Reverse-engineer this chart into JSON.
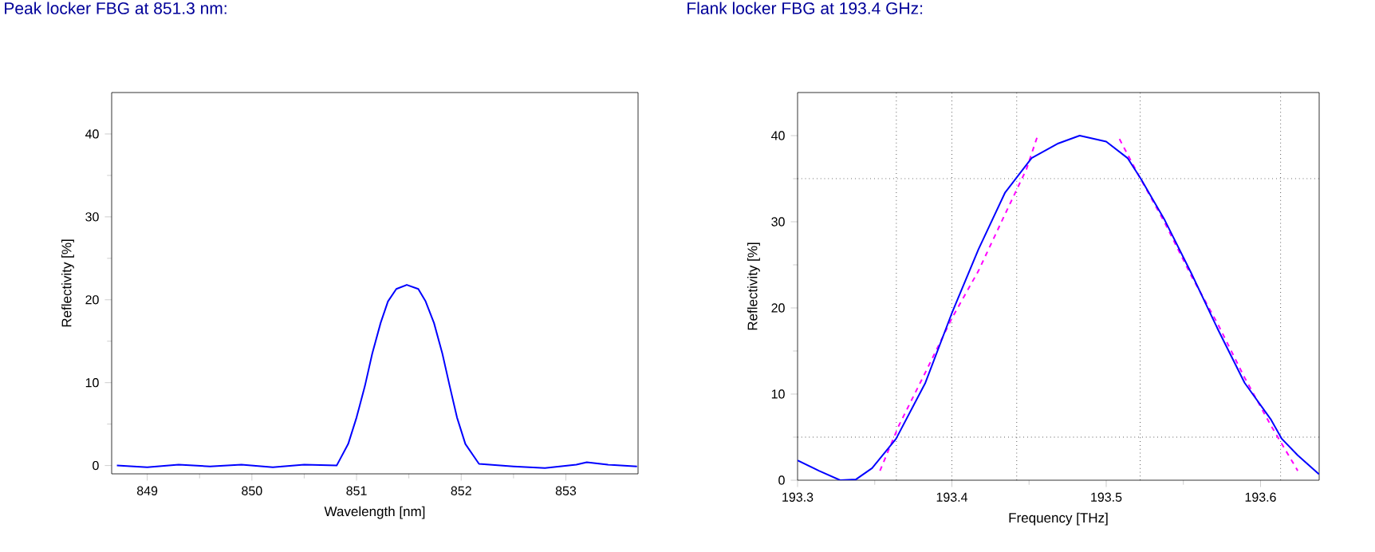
{
  "chart_data": [
    {
      "type": "line",
      "title": "Peak locker FBG at 851.3 nm:",
      "xlabel": "Wavelength [nm]",
      "ylabel": "Reflectivity [%]",
      "xlim": [
        848.66,
        853.69
      ],
      "ylim": [
        -1,
        45
      ],
      "xticks": [
        849,
        850,
        851,
        852,
        853
      ],
      "yticks": [
        0,
        10,
        20,
        30,
        40
      ],
      "series": [
        {
          "color": "#0000ff",
          "line_style": "solid",
          "x": [
            848.71,
            849.0,
            849.3,
            849.6,
            849.9,
            850.2,
            850.5,
            850.81,
            850.92,
            851.0,
            851.08,
            851.15,
            851.23,
            851.3,
            851.38,
            851.48,
            851.59,
            851.66,
            851.74,
            851.82,
            851.89,
            851.96,
            852.04,
            852.17,
            852.5,
            852.8,
            853.1,
            853.2,
            853.4,
            853.68
          ],
          "values": [
            0,
            -0.2,
            0.1,
            -0.1,
            0.1,
            -0.2,
            0.1,
            0,
            2.6,
            5.8,
            9.6,
            13.5,
            17.2,
            19.8,
            21.3,
            21.8,
            21.3,
            19.8,
            17.2,
            13.5,
            9.6,
            5.8,
            2.6,
            0.2,
            -0.1,
            -0.3,
            0.1,
            0.4,
            0.1,
            -0.1
          ]
        }
      ]
    },
    {
      "type": "line",
      "title": "Flank locker FBG at 193.4 GHz:",
      "xlabel": "Frequency [THz]",
      "ylabel": "Reflectivity [%]",
      "xlim": [
        193.3,
        193.638
      ],
      "ylim": [
        0,
        45
      ],
      "xticks": [
        193.3,
        193.4,
        193.5,
        193.6
      ],
      "yticks": [
        0,
        10,
        20,
        30,
        40
      ],
      "ref_lines": [
        {
          "axis": "y",
          "value": 5,
          "line_style": "dotted"
        },
        {
          "axis": "y",
          "value": 35,
          "line_style": "dotted"
        },
        {
          "axis": "x",
          "value": 193.364,
          "line_style": "dotted"
        },
        {
          "axis": "x",
          "value": 193.4,
          "line_style": "dotted"
        },
        {
          "axis": "x",
          "value": 193.442,
          "line_style": "dotted"
        },
        {
          "axis": "x",
          "value": 193.522,
          "line_style": "dotted"
        },
        {
          "axis": "x",
          "value": 193.613,
          "line_style": "dotted"
        }
      ],
      "series": [
        {
          "color": "#ff00ff",
          "line_style": "dashed",
          "x": [
            193.3534,
            193.3655,
            193.3828,
            193.4,
            193.4172,
            193.4345,
            193.4483,
            193.4552,
            193.48,
            193.5086,
            193.5207,
            193.5379,
            193.5552,
            193.5724,
            193.5897,
            193.6069,
            193.6241
          ],
          "values": [
            1.1,
            6.3,
            12.5,
            18.8,
            24.3,
            30.9,
            36.1,
            39.8,
            null,
            39.6,
            35.5,
            29.9,
            23.7,
            18.1,
            11.9,
            6.3,
            1.1
          ]
        },
        {
          "color": "#0000ff",
          "line_style": "solid",
          "x": [
            193.3,
            193.3138,
            193.3276,
            193.3379,
            193.3483,
            193.3638,
            193.3828,
            193.4,
            193.4172,
            193.4345,
            193.4517,
            193.469,
            193.4828,
            193.5,
            193.5138,
            193.5224,
            193.5379,
            193.5552,
            193.5724,
            193.5897,
            193.6069,
            193.6138,
            193.6241,
            193.6379
          ],
          "values": [
            2.3,
            1.1,
            0,
            0.1,
            1.4,
            4.8,
            11.3,
            19.4,
            26.8,
            33.4,
            37.4,
            39.1,
            40,
            39.3,
            37.4,
            35,
            30.2,
            24,
            17.5,
            11.3,
            7,
            4.8,
            2.9,
            0.7
          ]
        }
      ]
    }
  ]
}
